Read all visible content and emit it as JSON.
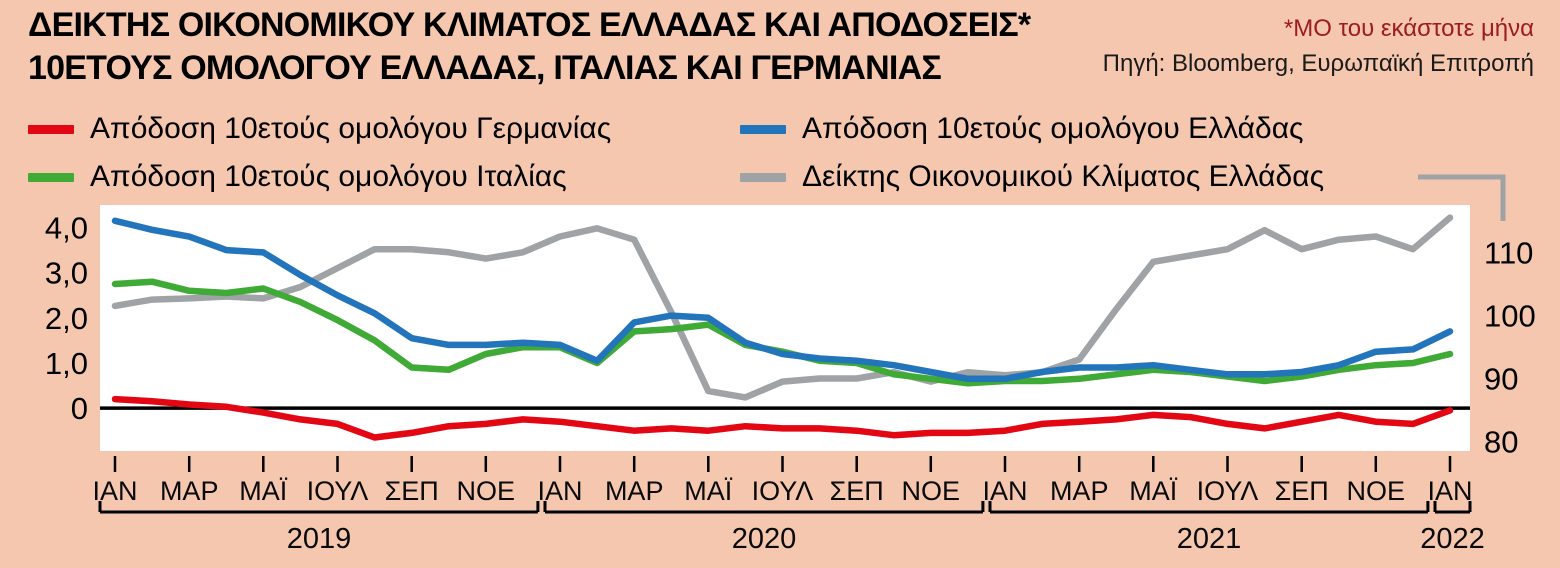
{
  "page": {
    "background": "#f4c7ae",
    "title_line1": "ΔΕΙΚΤΗΣ ΟΙΚΟΝΟΜΙΚΟΥ ΚΛΙΜΑΤΟΣ ΕΛΛΑΔΑΣ ΚΑΙ ΑΠΟΔΟΣΕΙΣ*",
    "title_line2": "10ΕΤΟΥΣ ΟΜΟΛΟΓΟΥ ΕΛΛΑΔΑΣ, ΙΤΑΛΙΑΣ ΚΑΙ ΓΕΡΜΑΝΙΑΣ",
    "footnote": "*ΜΟ του εκάστοτε μήνα",
    "source": "Πηγή: Bloomberg, Ευρωπαϊκή Επιτροπή"
  },
  "legend": {
    "items": [
      {
        "label": "Απόδοση 10ετούς ομολόγου Γερμανίας",
        "color": "#e30613"
      },
      {
        "label": "Απόδοση 10ετούς ομολόγου Ελλάδας",
        "color": "#2274bb"
      },
      {
        "label": "Απόδοση 10ετούς ομολόγου Ιταλίας",
        "color": "#3faa35"
      },
      {
        "label": "Δείκτης Οικονομικού Κλίματος Ελλάδας",
        "color": "#9fa3a6"
      }
    ]
  },
  "chart_data": {
    "type": "line",
    "title": "ΔΕΙΚΤΗΣ ΟΙΚΟΝΟΜΙΚΟΥ ΚΛΙΜΑΤΟΣ ΕΛΛΑΔΑΣ ΚΑΙ ΑΠΟΔΟΣΕΙΣ* 10ΕΤΟΥΣ ΟΜΟΛΟΓΟΥ ΕΛΛΑΔΑΣ, ΙΤΑΛΙΑΣ ΚΑΙ ΓΕΡΜΑΝΙΑΣ",
    "x_frequency": "monthly",
    "x_range": "ΙΑΝ 2019 - ΙΑΝ 2022",
    "x_tick_every": 2,
    "x_tick_labels": [
      "ΙΑΝ",
      "ΜΑΡ",
      "ΜΑΪ",
      "ΙΟΥΛ",
      "ΣΕΠ",
      "ΝΟΕ",
      "ΙΑΝ",
      "ΜΑΡ",
      "ΜΑΪ",
      "ΙΟΥΛ",
      "ΣΕΠ",
      "ΝΟΕ",
      "ΙΑΝ",
      "ΜΑΡ",
      "ΜΑΪ",
      "ΙΟΥΛ",
      "ΣΕΠ",
      "ΝΟΕ",
      "ΙΑΝ"
    ],
    "year_groups": [
      {
        "label": "2019",
        "start": 0,
        "end": 11
      },
      {
        "label": "2020",
        "start": 12,
        "end": 23
      },
      {
        "label": "2021",
        "start": 24,
        "end": 35
      },
      {
        "label": "2022",
        "start": 36,
        "end": 36
      }
    ],
    "left_axis": {
      "tick_labels": [
        "4,0",
        "3,0",
        "2,0",
        "1,0",
        "0"
      ],
      "tick_values": [
        4,
        3,
        2,
        1,
        0
      ],
      "min": -0.95,
      "max": 4.5,
      "zero_line": true
    },
    "right_axis": {
      "tick_labels": [
        "110",
        "100",
        "90",
        "80"
      ],
      "tick_values": [
        110,
        100,
        90,
        80
      ],
      "min": 78.5,
      "max": 117.5
    },
    "grid": false,
    "legend_position": "top",
    "draw_order": [
      "sentiment",
      "italy",
      "greece",
      "germany"
    ],
    "series": [
      {
        "id": "germany",
        "name": "Απόδοση 10ετούς ομολόγου Γερμανίας",
        "color": "#e30613",
        "axis": "left",
        "values": [
          0.2,
          0.15,
          0.08,
          0.03,
          -0.1,
          -0.25,
          -0.35,
          -0.65,
          -0.55,
          -0.4,
          -0.35,
          -0.25,
          -0.3,
          -0.4,
          -0.5,
          -0.45,
          -0.5,
          -0.4,
          -0.45,
          -0.45,
          -0.5,
          -0.6,
          -0.55,
          -0.55,
          -0.5,
          -0.35,
          -0.3,
          -0.25,
          -0.15,
          -0.2,
          -0.35,
          -0.45,
          -0.3,
          -0.15,
          -0.3,
          -0.35,
          -0.05
        ]
      },
      {
        "id": "greece",
        "name": "Απόδοση 10ετούς ομολόγου Ελλάδας",
        "color": "#2274bb",
        "axis": "left",
        "values": [
          4.15,
          3.95,
          3.8,
          3.5,
          3.45,
          2.95,
          2.5,
          2.1,
          1.55,
          1.4,
          1.4,
          1.45,
          1.4,
          1.05,
          1.9,
          2.05,
          2.0,
          1.45,
          1.2,
          1.1,
          1.05,
          0.95,
          0.8,
          0.65,
          0.65,
          0.8,
          0.9,
          0.9,
          0.95,
          0.85,
          0.75,
          0.75,
          0.8,
          0.95,
          1.25,
          1.3,
          1.7
        ]
      },
      {
        "id": "italy",
        "name": "Απόδοση 10ετούς ομολόγου Ιταλίας",
        "color": "#3faa35",
        "axis": "left",
        "values": [
          2.75,
          2.8,
          2.6,
          2.55,
          2.65,
          2.35,
          1.95,
          1.5,
          0.9,
          0.85,
          1.2,
          1.35,
          1.35,
          1.0,
          1.7,
          1.75,
          1.85,
          1.4,
          1.25,
          1.05,
          1.0,
          0.75,
          0.65,
          0.55,
          0.6,
          0.6,
          0.65,
          0.75,
          0.85,
          0.8,
          0.7,
          0.6,
          0.7,
          0.85,
          0.95,
          1.0,
          1.2
        ]
      },
      {
        "id": "sentiment",
        "name": "Δείκτης Οικονομικού Κλίματος Ελλάδας",
        "color": "#9fa3a6",
        "axis": "right",
        "values": [
          101.5,
          102.5,
          102.7,
          103,
          102.7,
          104.5,
          107.5,
          110.5,
          110.5,
          110,
          109,
          110,
          112.5,
          113.8,
          112,
          100.5,
          88,
          87,
          89.5,
          90,
          90,
          91,
          89.5,
          91,
          90.5,
          91,
          93,
          101,
          108.5,
          109.5,
          110.5,
          113.5,
          110.5,
          112,
          112.5,
          110.5,
          115.5
        ]
      }
    ]
  }
}
